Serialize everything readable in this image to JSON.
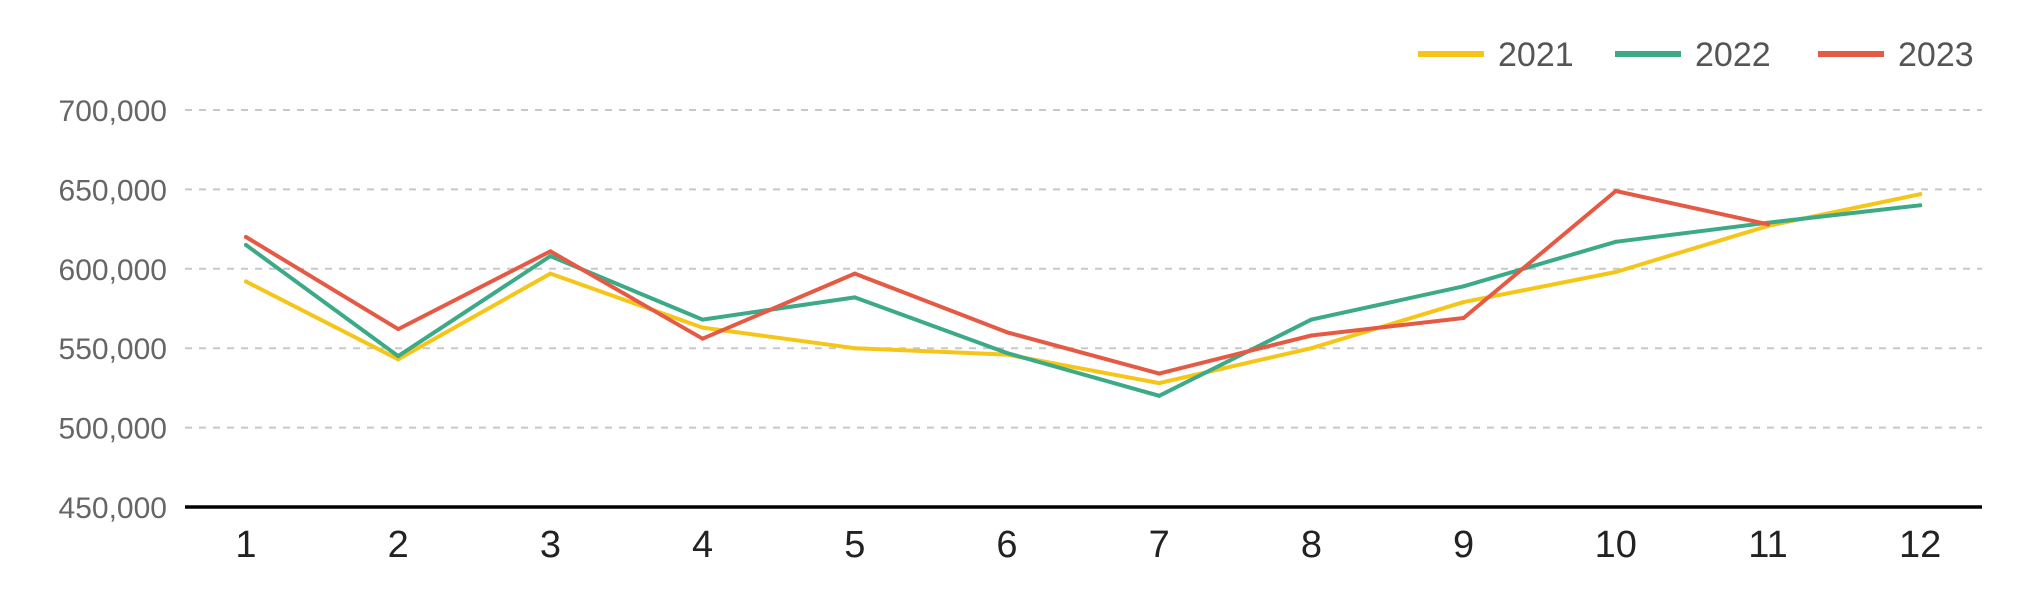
{
  "chart_data": {
    "type": "line",
    "title": "",
    "xlabel": "",
    "ylabel": "",
    "categories": [
      "1",
      "2",
      "3",
      "4",
      "5",
      "6",
      "7",
      "8",
      "9",
      "10",
      "11",
      "12"
    ],
    "ylim": [
      450000,
      700000
    ],
    "yticks": [
      450000,
      500000,
      550000,
      600000,
      650000,
      700000
    ],
    "ytick_labels": [
      "450,000",
      "500,000",
      "550,000",
      "600,000",
      "650,000",
      "700,000"
    ],
    "grid": true,
    "legend_position": "top-right",
    "series": [
      {
        "name": "2021",
        "color": "#F5C518",
        "values": [
          592000,
          543000,
          597000,
          563000,
          550000,
          546000,
          528000,
          550000,
          579000,
          598000,
          627000,
          647000
        ]
      },
      {
        "name": "2022",
        "color": "#3DAA87",
        "values": [
          615000,
          545000,
          608000,
          568000,
          582000,
          547000,
          520000,
          568000,
          589000,
          617000,
          629000,
          640000
        ]
      },
      {
        "name": "2023",
        "color": "#E55A45",
        "values": [
          620000,
          562000,
          611000,
          556000,
          597000,
          560000,
          534000,
          558000,
          569000,
          649000,
          628000,
          null
        ]
      }
    ]
  }
}
